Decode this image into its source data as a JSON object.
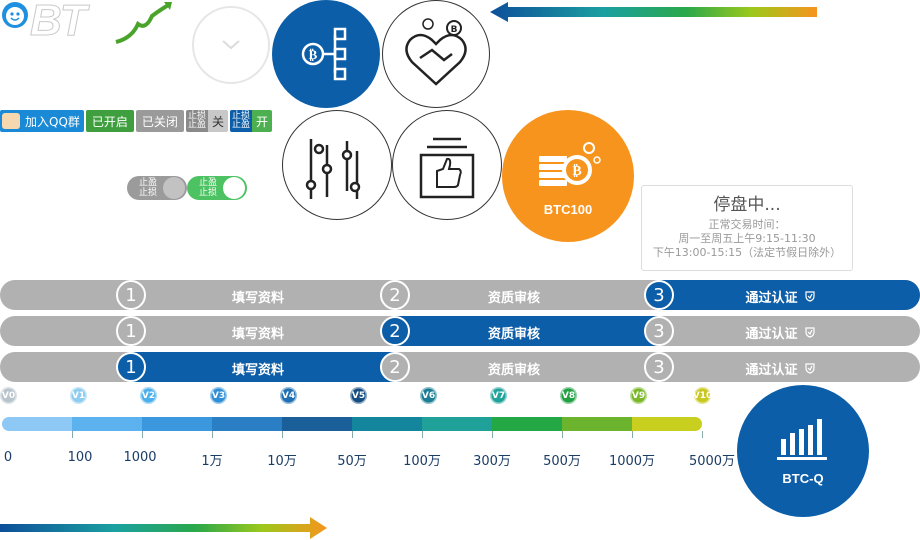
{
  "colors": {
    "primary_blue": "#0d5ea8",
    "orange": "#f7941d",
    "green": "#3f9f3f",
    "gray": "#b1b1b1"
  },
  "logo": {
    "text": "BT"
  },
  "icons": {
    "chevron_circle": "chevron-down-icon",
    "blockchain_circle": "bitcoin-network-icon",
    "handshake_circle": "bitcoin-handshake-icon",
    "sliders_circle": "sliders-icon",
    "thumbsup_circle": "thumbs-up-icon",
    "btc100_circle": "bitcoin-coins-icon",
    "btcq_circle": "bar-chart-icon"
  },
  "qq_bar": {
    "join_qq": "加入QQ群",
    "opened": "已开启",
    "closed": "已关闭",
    "tp_sl_off": {
      "line1": "止损",
      "line2": "止盈",
      "state": "关"
    },
    "tp_sl_on": {
      "line1": "止损",
      "line2": "止盈",
      "state": "开"
    }
  },
  "switches": {
    "off": {
      "line1": "止盈",
      "line2": "止损"
    },
    "on": {
      "line1": "止盈",
      "line2": "止损"
    }
  },
  "btc100": {
    "label": "BTC100"
  },
  "btcq": {
    "label": "BTC-Q"
  },
  "notice": {
    "title": "停盘中...",
    "line1": "正常交易时间：",
    "line2": "周一至周五上午9:15-11:30",
    "line3": "下午13:00-15:15（法定节假日除外）"
  },
  "steps": {
    "labels": [
      "填写资料",
      "资质审核",
      "通过认证"
    ],
    "numbers": [
      "1",
      "2",
      "3"
    ],
    "bars_active_step": [
      3,
      2,
      1
    ]
  },
  "vip": {
    "levels": [
      "V0",
      "V1",
      "V2",
      "V3",
      "V4",
      "V5",
      "V6",
      "V7",
      "V8",
      "V9",
      "V10"
    ],
    "badge_colors": [
      "#b8c4cc",
      "#8fcdf0",
      "#4db0ec",
      "#2f8fd6",
      "#1f6fb2",
      "#154d80",
      "#1c7e94",
      "#1fa39a",
      "#22a044",
      "#7ab82a",
      "#c8c820"
    ],
    "thresholds": [
      "0",
      "100",
      "1000",
      "1万",
      "10万",
      "50万",
      "100万",
      "300万",
      "500万",
      "1000万",
      "5000万"
    ],
    "segment_colors": [
      "#8ec9f5",
      "#5bb2ef",
      "#3b98de",
      "#2a7fc4",
      "#1a5f9a",
      "#13869e",
      "#1fa19a",
      "#24a845",
      "#6cb42e",
      "#c8cf1e"
    ]
  },
  "arrows": {
    "top": {
      "colors": [
        "#0d4f9a",
        "#1ba0a0",
        "#2aa84a",
        "#9cc81c",
        "#f7941d"
      ]
    },
    "bottom": {
      "colors": [
        "#0d4f9a",
        "#1ba0a0",
        "#2aa84a",
        "#9cc81c",
        "#f7941d"
      ]
    }
  }
}
